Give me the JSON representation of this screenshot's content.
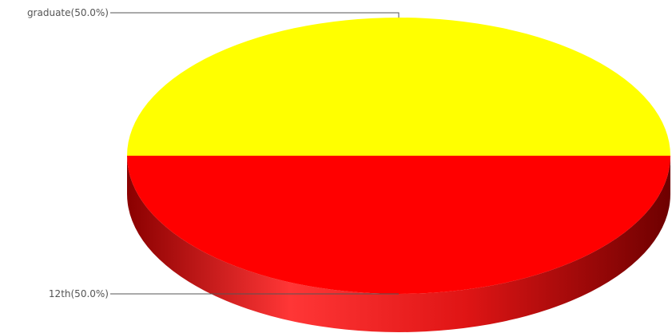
{
  "chart_data": {
    "type": "pie",
    "style": "3d",
    "slices": [
      {
        "label": "graduate",
        "percent": 50.0,
        "display": "graduate(50.0%)",
        "color": "#ffff00"
      },
      {
        "label": "12th",
        "percent": 50.0,
        "display": "12th(50.0%)",
        "color": "#ff0000"
      }
    ],
    "side_color_dark": "#7a0000",
    "side_color_light": "#ff3a3a"
  }
}
